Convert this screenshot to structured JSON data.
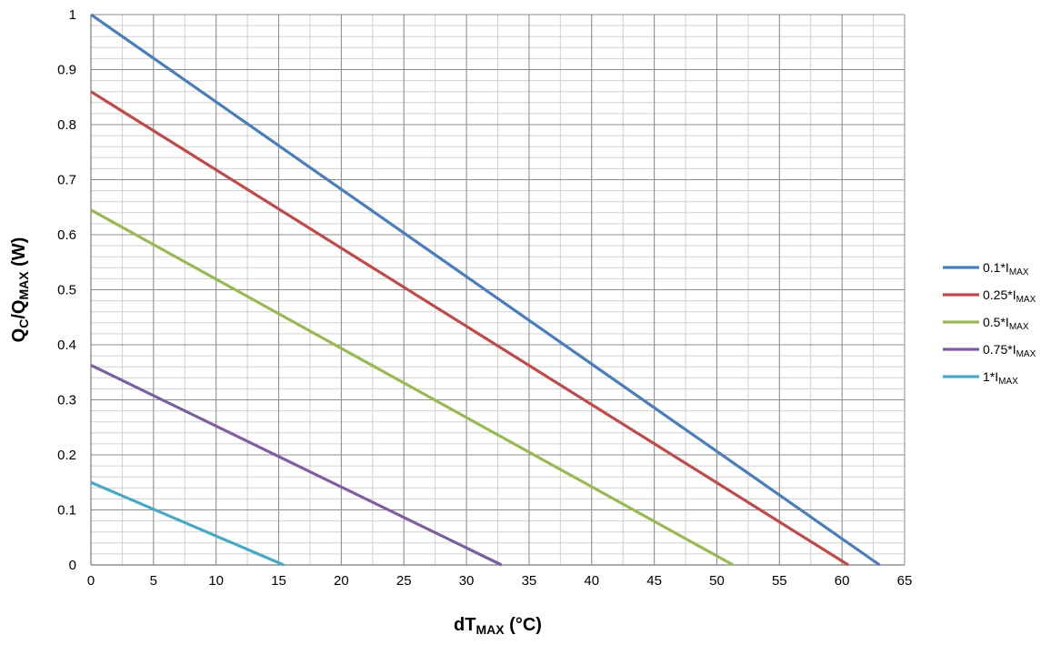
{
  "chart_data": {
    "type": "line",
    "x_axis": {
      "title_main": "dT",
      "title_sub": "MAX",
      "title_tail": " (°C)",
      "min": 0,
      "max": 65,
      "major_step": 5,
      "minor_step": 2.5,
      "tick_labels": [
        "0",
        "5",
        "10",
        "15",
        "20",
        "25",
        "30",
        "35",
        "40",
        "45",
        "50",
        "55",
        "60",
        "65"
      ]
    },
    "y_axis": {
      "title_q1": "Q",
      "title_q1_sub": "C",
      "title_slash": "/Q",
      "title_q2_sub": "MAX",
      "title_tail": " (W)",
      "min": 0,
      "max": 1,
      "major_step": 0.1,
      "minor_step": 0.02,
      "tick_labels": [
        "0",
        "0.1",
        "0.2",
        "0.3",
        "0.4",
        "0.5",
        "0.6",
        "0.7",
        "0.8",
        "0.9",
        "1"
      ]
    },
    "grid": true,
    "legend_position": "right",
    "series": [
      {
        "name": "0.1*I",
        "name_sub": "MAX",
        "color": "#4a7ebb",
        "points": [
          [
            0,
            1.0
          ],
          [
            63,
            0
          ]
        ]
      },
      {
        "name": "0.25*I",
        "name_sub": "MAX",
        "color": "#be4b48",
        "points": [
          [
            0,
            0.86
          ],
          [
            60.5,
            0
          ]
        ]
      },
      {
        "name": "0.5*I",
        "name_sub": "MAX",
        "color": "#98b954",
        "points": [
          [
            0,
            0.645
          ],
          [
            51.3,
            0
          ]
        ]
      },
      {
        "name": "0.75*I",
        "name_sub": "MAX",
        "color": "#7d5fa0",
        "points": [
          [
            0,
            0.363
          ],
          [
            32.8,
            0
          ]
        ]
      },
      {
        "name": "1*I",
        "name_sub": "MAX",
        "color": "#46aac5",
        "points": [
          [
            0,
            0.15
          ],
          [
            15.4,
            0
          ]
        ]
      }
    ]
  }
}
